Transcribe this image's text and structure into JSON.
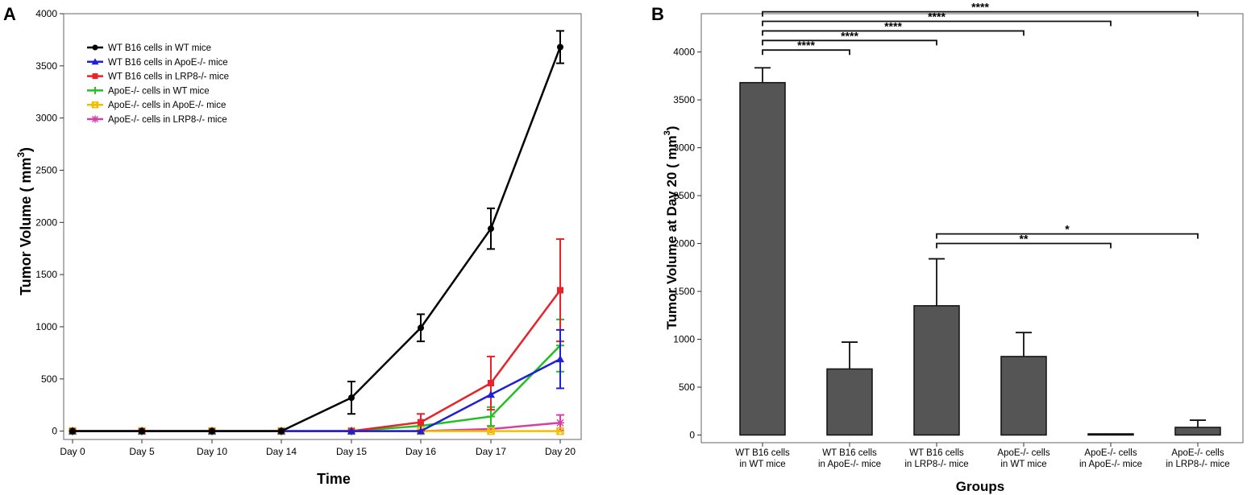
{
  "panels": {
    "a_label": "A",
    "b_label": "B"
  },
  "chart_data": [
    {
      "type": "line",
      "panel": "A",
      "xlabel": "Time",
      "ylabel": "Tumor Volume ( mm",
      "ylabel_sup": "3",
      "ylabel_close": ")",
      "categories": [
        "Day 0",
        "Day 5",
        "Day 10",
        "Day 14",
        "Day 15",
        "Day 16",
        "Day 17",
        "Day 20"
      ],
      "ylim": [
        -80,
        4000
      ],
      "yticks": [
        0,
        500,
        1000,
        1500,
        2000,
        2500,
        3000,
        3500,
        4000
      ],
      "legend_position": "top-left",
      "series": [
        {
          "name": "WT B16 cells in WT mice",
          "color": "#000000",
          "marker": "circle",
          "values": [
            0,
            0,
            0,
            0,
            320,
            990,
            1940,
            3680
          ],
          "errors": [
            0,
            0,
            0,
            0,
            155,
            130,
            195,
            155
          ]
        },
        {
          "name": "WT B16 cells in ApoE-/- mice",
          "color": "#1f1fd6",
          "marker": "triangle",
          "values": [
            0,
            0,
            0,
            0,
            0,
            0,
            350,
            690
          ],
          "errors": [
            0,
            0,
            0,
            0,
            0,
            0,
            0,
            280
          ]
        },
        {
          "name": "WT B16 cells in LRP8-/- mice",
          "color": "#e8232a",
          "marker": "square",
          "values": [
            0,
            0,
            0,
            0,
            0,
            85,
            460,
            1350
          ],
          "errors": [
            0,
            0,
            0,
            0,
            0,
            80,
            255,
            490
          ]
        },
        {
          "name": "ApoE-/- cells in WT mice",
          "color": "#22c022",
          "marker": "plus",
          "values": [
            0,
            0,
            0,
            0,
            0,
            50,
            140,
            820
          ],
          "errors": [
            0,
            0,
            0,
            0,
            0,
            0,
            90,
            250
          ]
        },
        {
          "name": "ApoE-/- cells in ApoE-/- mice",
          "color": "#f0c000",
          "marker": "squarex",
          "values": [
            0,
            0,
            0,
            0,
            0,
            0,
            0,
            0
          ],
          "errors": [
            0,
            0,
            0,
            0,
            0,
            0,
            0,
            0
          ]
        },
        {
          "name": "ApoE-/- cells in LRP8-/- mice",
          "color": "#d63fa8",
          "marker": "asterisk",
          "values": [
            0,
            0,
            0,
            0,
            0,
            0,
            20,
            80
          ],
          "errors": [
            0,
            0,
            0,
            0,
            0,
            0,
            0,
            75
          ]
        }
      ]
    },
    {
      "type": "bar",
      "panel": "B",
      "xlabel": "Groups",
      "ylabel": "Tumor Volume at Day 20 ( mm",
      "ylabel_sup": "3",
      "ylabel_close": ")",
      "categories": [
        [
          "WT B16 cells",
          "in WT mice"
        ],
        [
          "WT B16 cells",
          "in ApoE-/- mice"
        ],
        [
          "WT B16 cells",
          "in LRP8-/- mice"
        ],
        [
          "ApoE-/- cells",
          "in WT mice"
        ],
        [
          "ApoE-/- cells",
          "in ApoE-/- mice"
        ],
        [
          "ApoE-/- cells",
          "in LRP8-/- mice"
        ]
      ],
      "values": [
        3680,
        690,
        1350,
        820,
        0,
        80
      ],
      "errors": [
        155,
        280,
        490,
        250,
        0,
        75
      ],
      "bar_color": "#555555",
      "ylim": [
        -80,
        4400
      ],
      "yticks": [
        0,
        500,
        1000,
        1500,
        2000,
        2500,
        3000,
        3500,
        4000
      ],
      "significance": [
        {
          "from": 0,
          "to": 1,
          "label": "****",
          "y": 4020
        },
        {
          "from": 0,
          "to": 2,
          "label": "****",
          "y": 4120
        },
        {
          "from": 0,
          "to": 3,
          "label": "****",
          "y": 4220
        },
        {
          "from": 0,
          "to": 4,
          "label": "****",
          "y": 4320
        },
        {
          "from": 0,
          "to": 5,
          "label": "****",
          "y": 4420
        },
        {
          "from": 2,
          "to": 4,
          "label": "**",
          "y": 2000
        },
        {
          "from": 2,
          "to": 5,
          "label": "*",
          "y": 2100
        }
      ]
    }
  ]
}
